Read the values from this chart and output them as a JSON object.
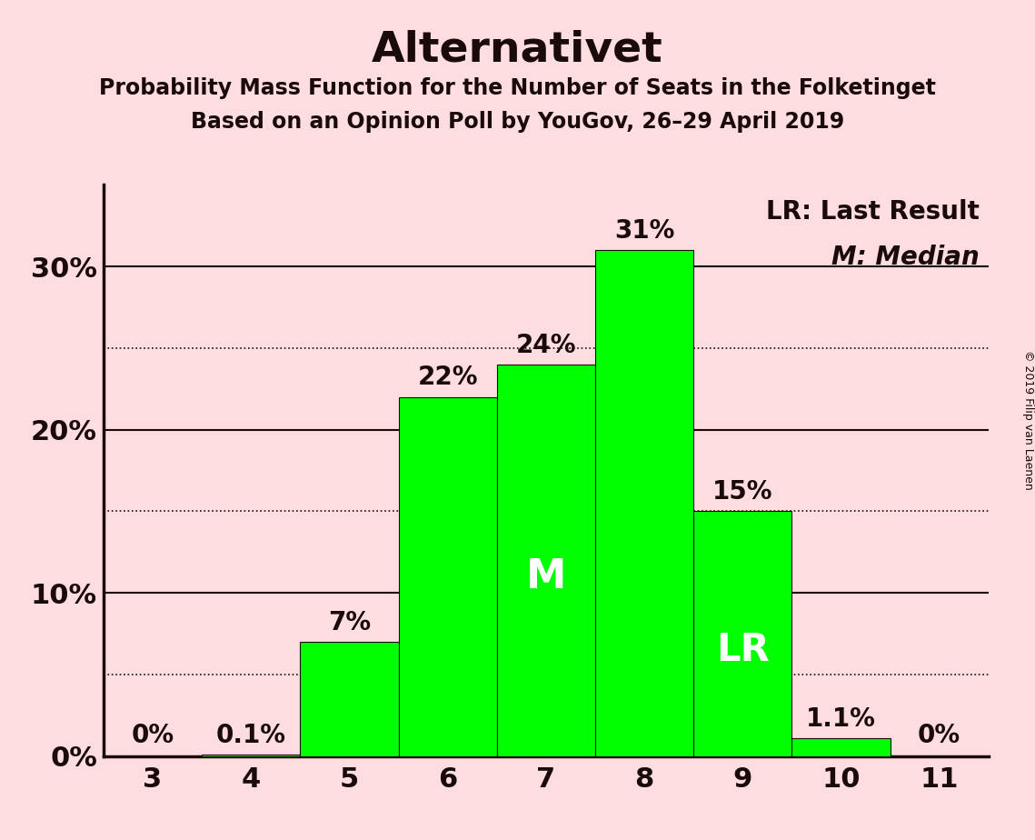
{
  "title": "Alternativet",
  "subtitle1": "Probability Mass Function for the Number of Seats in the Folketinget",
  "subtitle2": "Based on an Opinion Poll by YouGov, 26–29 April 2019",
  "copyright": "© 2019 Filip van Laenen",
  "categories": [
    3,
    4,
    5,
    6,
    7,
    8,
    9,
    10,
    11
  ],
  "values": [
    0.0,
    0.1,
    7.0,
    22.0,
    24.0,
    31.0,
    15.0,
    1.1,
    0.0
  ],
  "bar_labels": [
    "0%",
    "0.1%",
    "7%",
    "22%",
    "24%",
    "31%",
    "15%",
    "1.1%",
    "0%"
  ],
  "bar_color": "#00FF00",
  "background_color": "#FDDDE0",
  "text_color": "#1a0a0a",
  "yticks_solid": [
    0,
    10,
    20,
    30
  ],
  "yticks_dotted": [
    5,
    15,
    25
  ],
  "ylim": [
    0,
    35
  ],
  "median_bar": 7,
  "lr_bar": 9,
  "legend_lr": "LR: Last Result",
  "legend_m": "M: Median",
  "title_fontsize": 34,
  "subtitle_fontsize": 17,
  "label_fontsize": 20,
  "tick_fontsize": 22,
  "inside_label_fontsize": 28,
  "copyright_fontsize": 9
}
